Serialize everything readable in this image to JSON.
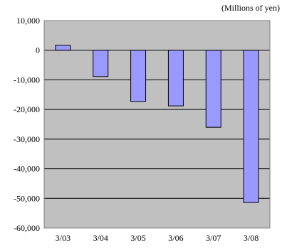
{
  "chart_data": {
    "type": "bar",
    "title": "",
    "unit_label": "(Millions of yen)",
    "xlabel": "",
    "ylabel": "",
    "categories": [
      "3/03",
      "3/04",
      "3/05",
      "3/06",
      "3/07",
      "3/08"
    ],
    "values": [
      1700,
      -8900,
      -17300,
      -18800,
      -26000,
      -51400
    ],
    "ylim": [
      -60000,
      10000
    ],
    "yticks": [
      10000,
      0,
      -10000,
      -20000,
      -30000,
      -40000,
      -50000,
      -60000
    ],
    "ytick_labels": [
      "10,000",
      "0",
      "-10,000",
      "-20,000",
      "-30,000",
      "-40,000",
      "-50,000",
      "-60,000"
    ],
    "grid": true,
    "legend": "none",
    "colors": {
      "plot_background": "#c0c0c0",
      "bar_fill": "#9999ff",
      "bar_stroke": "#000000",
      "grid": "#000000"
    }
  }
}
